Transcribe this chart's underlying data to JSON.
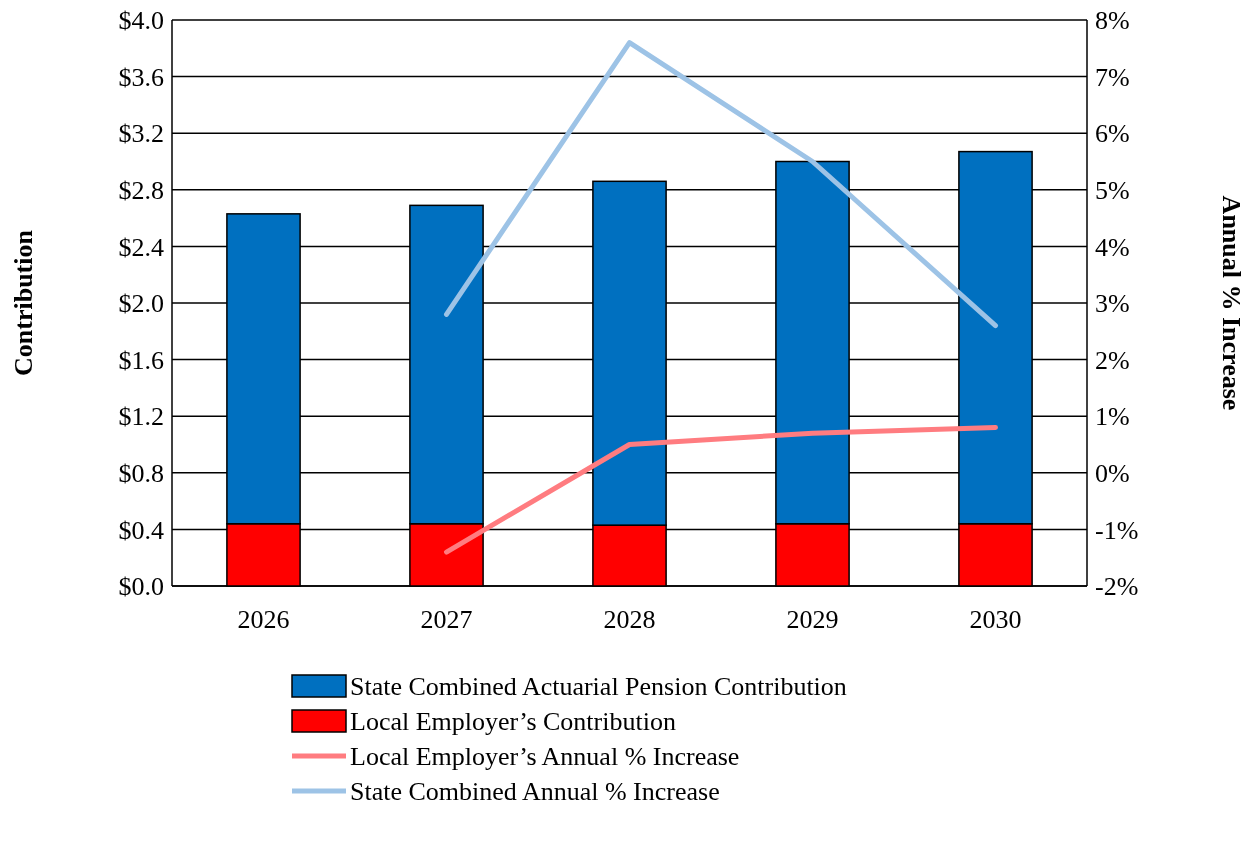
{
  "chart_data": {
    "type": "bar",
    "stacked": true,
    "categories": [
      "2026",
      "2027",
      "2028",
      "2029",
      "2030"
    ],
    "series": [
      {
        "name": "Local Employer’s Contribution",
        "color": "#ff0000",
        "values": [
          0.44,
          0.44,
          0.43,
          0.44,
          0.44
        ]
      },
      {
        "name": "State Combined Actuarial Pension Contribution",
        "color": "#0070c0",
        "values": [
          2.19,
          2.25,
          2.43,
          2.56,
          2.63
        ]
      },
      {
        "name": "Local Employer’s Annual % Increase",
        "type": "line",
        "axis": "y2",
        "color": "#ff7c80",
        "values": [
          null,
          -1.4,
          0.5,
          0.7,
          0.8
        ]
      },
      {
        "name": "State Combined Annual % Increase",
        "type": "line",
        "axis": "y2",
        "color": "#9dc3e6",
        "values": [
          null,
          2.8,
          7.6,
          5.5,
          2.6
        ]
      }
    ],
    "ylabel": "Contribution",
    "y2label": "Annual % Increase",
    "ylim": [
      0,
      4
    ],
    "yticks": [
      {
        "value": 0,
        "label": "$0.0"
      },
      {
        "value": 0.4,
        "label": "$0.4"
      },
      {
        "value": 0.8,
        "label": "$0.8"
      },
      {
        "value": 1.2,
        "label": "$1.2"
      },
      {
        "value": 1.6,
        "label": "$1.6"
      },
      {
        "value": 2,
        "label": "$2.0"
      },
      {
        "value": 2.4,
        "label": "$2.4"
      },
      {
        "value": 2.8,
        "label": "$2.8"
      },
      {
        "value": 3.2,
        "label": "$3.2"
      },
      {
        "value": 3.6,
        "label": "$3.6"
      },
      {
        "value": 4,
        "label": "$4.0"
      }
    ],
    "y2lim": [
      -2,
      8
    ],
    "y2ticks": [
      {
        "value": -2,
        "label": "-2%"
      },
      {
        "value": -1,
        "label": "-1%"
      },
      {
        "value": 0,
        "label": "0%"
      },
      {
        "value": 1,
        "label": "1%"
      },
      {
        "value": 2,
        "label": "2%"
      },
      {
        "value": 3,
        "label": "3%"
      },
      {
        "value": 4,
        "label": "4%"
      },
      {
        "value": 5,
        "label": "5%"
      },
      {
        "value": 6,
        "label": "6%"
      },
      {
        "value": 7,
        "label": "7%"
      },
      {
        "value": 8,
        "label": "8%"
      }
    ],
    "grid": "y",
    "legend": "bottom"
  }
}
